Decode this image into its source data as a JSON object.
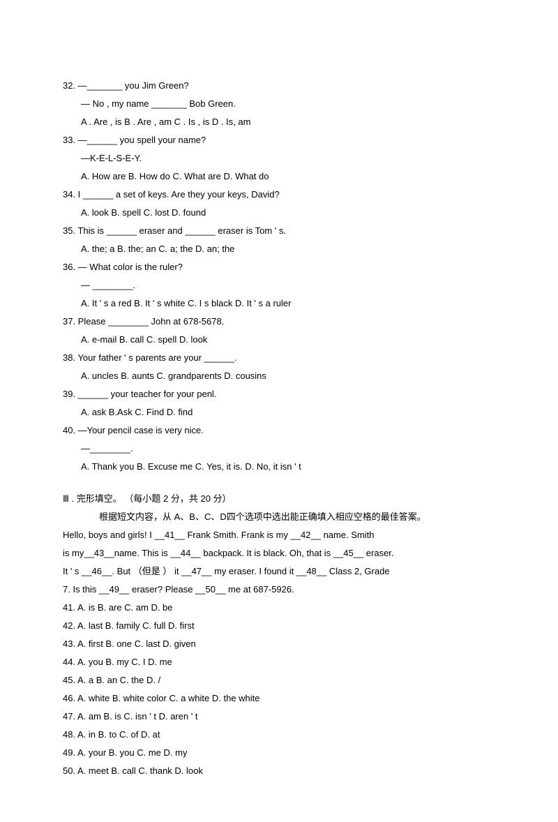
{
  "questions": [
    {
      "num": "32.",
      "lines": [
        "—_______ you Jim Green?",
        "— No , my name _______ Bob Green."
      ],
      "opts": "A . Are , is    B        . Are , am    C       . Is , is    D         . Is, am"
    },
    {
      "num": "33.",
      "lines": [
        "—______ you spell your name?",
        "—K-E-L-S-E-Y."
      ],
      "opts": "A. How are   B. How do   C. What are   D. What do"
    },
    {
      "num": "34.",
      "lines": [
        "I ______ a set of keys. Are they your keys, David?"
      ],
      "opts": "A. look   B. spell   C. lost   D. found"
    },
    {
      "num": "35.",
      "lines": [
        "  This is ______ eraser and ______ eraser is Tom       ' s."
      ],
      "opts": "A. the; a   B. the; an   C. a; the   D. an; the"
    },
    {
      "num": "36.",
      "lines": [
        "  — What color is the ruler?",
        "—  ________."
      ],
      "opts": "A. It  ' s a   red     B. It  ' s white   C. I       s black        D. It   '  s a ruler"
    },
    {
      "num": "37.",
      "lines": [
        "Please ________ John at 678-5678."
      ],
      "opts": "A. e-mail   B. call   C. spell   D. look"
    },
    {
      "num": "38.",
      "lines": [
        "  Your father   ' s parents are your ______."
      ],
      "opts": "A. uncles   B. aunts   C. grandparents   D. cousins"
    },
    {
      "num": "39.",
      "lines": [
        "______ your teacher for your penl."
      ],
      "opts": "A. ask   B.Ask   C. Find   D. find"
    },
    {
      "num": "40.",
      "lines": [
        "  —Your pencil case is very nice.",
        "—________."
      ],
      "opts": "A. Thank you    B. Excuse me    C. Yes, it is.                         D. No, it isn     ' t"
    }
  ],
  "section": {
    "title": "Ⅲ  . 完形填空。 （每小题  2 分，共  20 分）",
    "instruction": "根据短文内容，从   A、B、C、D四个选项中选出能正确填入相应空格的最佳答案。",
    "passage": [
      "Hello, boys and girls! I __41__ Frank Smith. Frank is my __42__  name. Smith",
      "is  my__43__name.  This  is  __44__ backpack.  It  is  black.   Oh,  that   is   __45__ eraser.",
      "It ' s  __46__.  But  （但是 ） it   __47__  my eraser.   I  found  it  __48__  Class  2,  Grade",
      "7. Is this __49__ eraser? Please __50__  me at 687-5926."
    ],
    "cloze": [
      "41. A. is    B. are                  C. am            D. be",
      "42. A. last            B. family             C. full             D. first",
      "43. A. first             B. one             C. last                D. given",
      "44. A. you       B. my        C. I      D. me",
      "45. A. a           B. an               C. the     D. /",
      "46. A. white              B. white color   C. a white   D. the white",
      "47. A. am        B. is                       C. isn ' t        D. aren ' t",
      "48. A. in           B. to                     C. of      D. at",
      "49. A. your   B. you               C. me    D. my",
      "50. A. meet   B. call       C. thank     D. look"
    ]
  }
}
